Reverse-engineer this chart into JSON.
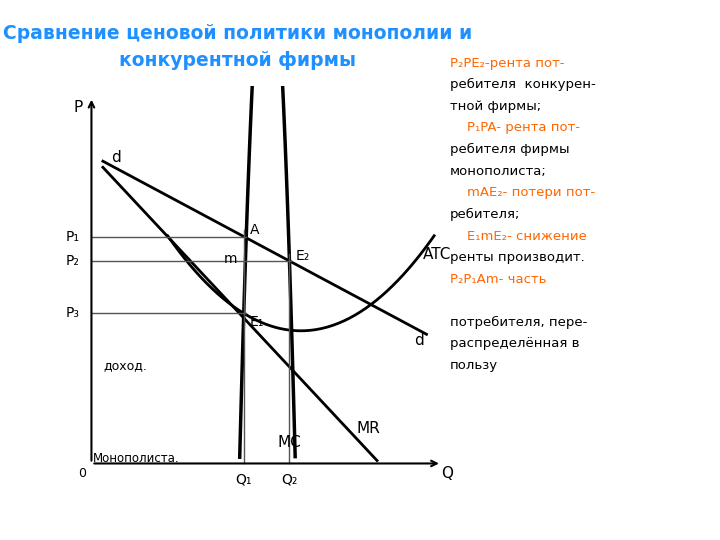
{
  "title_line1": "Сравнение ценовой политики монополии и",
  "title_line2": "конкурентной фирмы",
  "title_color": "#1e90ff",
  "bg_color": "#ffffff",
  "legend_lines": [
    {
      "text": "P₂PE₂-рента пот-",
      "color": "#ff6600"
    },
    {
      "text": "ребителя  конкурен-",
      "color": "#000000"
    },
    {
      "text": "тной фирмы;",
      "color": "#000000"
    },
    {
      "text": "    P₁PA- рента пот-",
      "color": "#ff6600"
    },
    {
      "text": "ребителя фирмы",
      "color": "#000000"
    },
    {
      "text": "монополиста;",
      "color": "#000000"
    },
    {
      "text": "    mAE₂- потери пот-",
      "color": "#ff6600"
    },
    {
      "text": "ребителя;",
      "color": "#000000"
    },
    {
      "text": "    E₁mE₂- снижение",
      "color": "#ff6600"
    },
    {
      "text": "ренты производит.",
      "color": "#000000"
    },
    {
      "text": "P₂P₁Am- часть",
      "color": "#ff6600"
    },
    {
      "text": "",
      "color": "#000000"
    },
    {
      "text": "потребителя, пере-",
      "color": "#000000"
    },
    {
      "text": "распределённая в",
      "color": "#000000"
    },
    {
      "text": "пользу",
      "color": "#000000"
    }
  ]
}
